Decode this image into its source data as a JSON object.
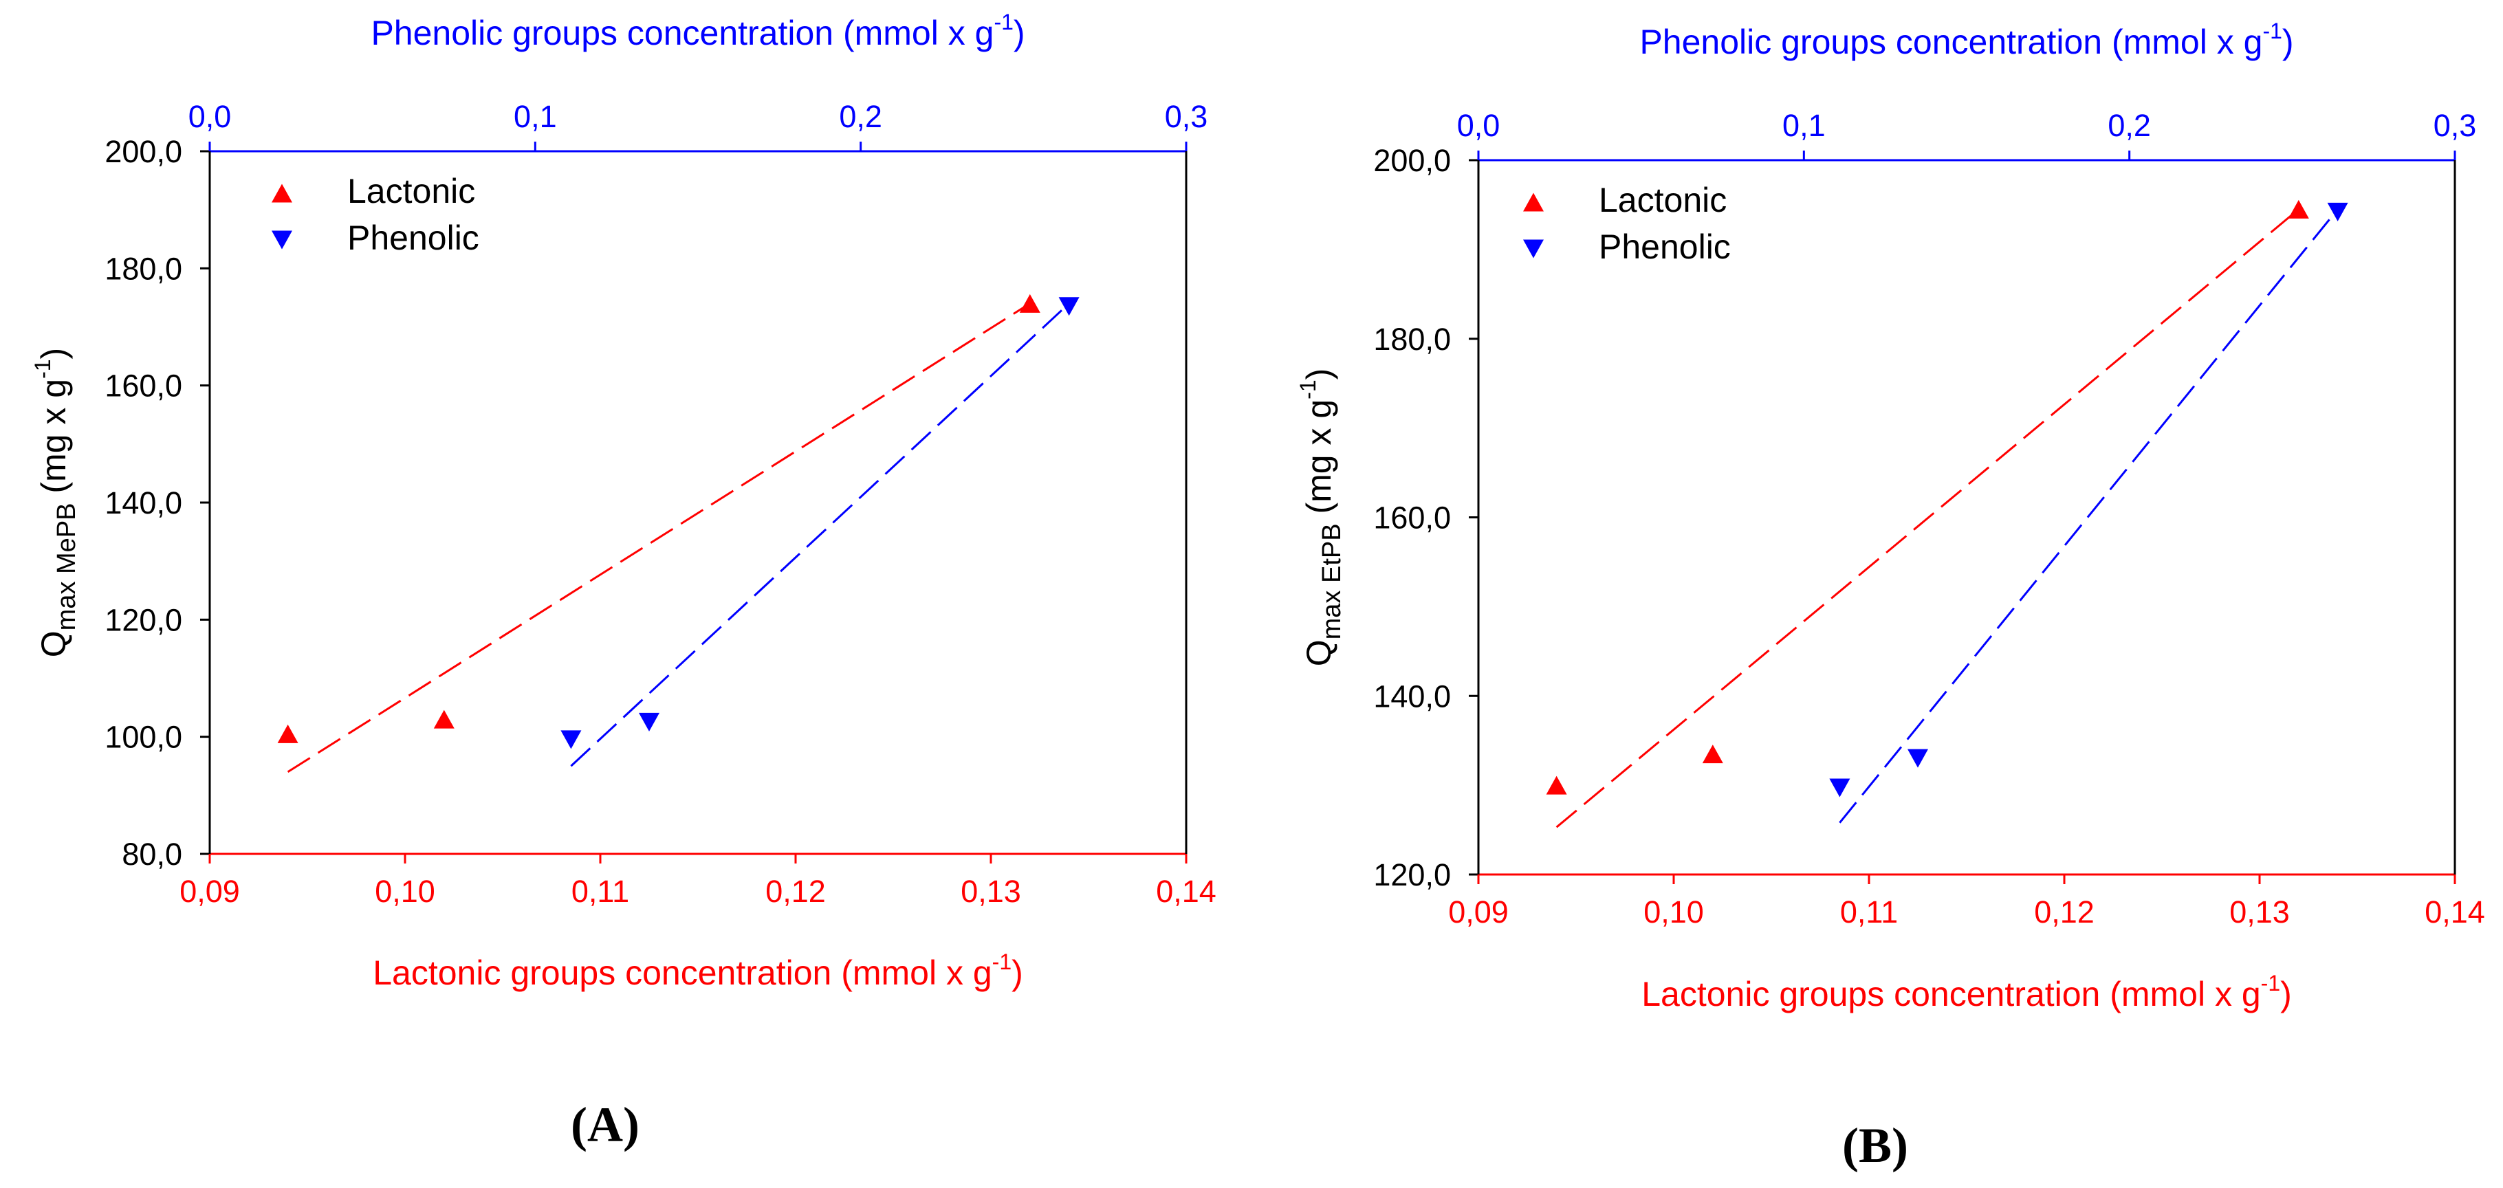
{
  "colors": {
    "lactonic": "#ff0000",
    "phenolic": "#0000ff",
    "axis": "#000000",
    "background": "#ffffff"
  },
  "chart_data": [
    {
      "type": "scatter",
      "panel_label": "A",
      "top_axis": {
        "label": "Phenolic groups concentration (mmol x g",
        "label_sup": "-1",
        "label_close": ")",
        "range": [
          0.0,
          0.3
        ],
        "ticks": [
          0.0,
          0.1,
          0.2,
          0.3
        ],
        "tick_labels": [
          "0,0",
          "0,1",
          "0,2",
          "0,3"
        ]
      },
      "bottom_axis": {
        "label": "Lactonic groups concentration (mmol x g",
        "label_sup": "-1",
        "label_close": ")",
        "range": [
          0.09,
          0.14
        ],
        "ticks": [
          0.09,
          0.1,
          0.11,
          0.12,
          0.13,
          0.14
        ],
        "tick_labels": [
          "0,09",
          "0,10",
          "0,11",
          "0,12",
          "0,13",
          "0,14"
        ]
      },
      "y_axis": {
        "label_main": "Q",
        "label_sub": "max  MePB",
        "label_rest": " (mg x g",
        "label_sup": "-1",
        "label_close": ")",
        "range": [
          80,
          200
        ],
        "ticks": [
          80,
          100,
          120,
          140,
          160,
          180,
          200
        ],
        "tick_labels": [
          "80,0",
          "100,0",
          "120,0",
          "140,0",
          "160,0",
          "180,0",
          "200,0"
        ]
      },
      "legend": {
        "position": "top-left",
        "entries": [
          "Lactonic",
          "Phenolic"
        ]
      },
      "series": [
        {
          "name": "Lactonic",
          "marker": "triangle-up",
          "axis": "bottom",
          "x": [
            0.094,
            0.102,
            0.132
          ],
          "y": [
            100.5,
            103.0,
            174.0
          ],
          "fit": {
            "x": [
              0.094,
              0.132
            ],
            "y": [
              94.0,
              174.0
            ]
          }
        },
        {
          "name": "Phenolic",
          "marker": "triangle-down",
          "axis": "top",
          "x": [
            0.111,
            0.135,
            0.264
          ],
          "y": [
            99.5,
            102.5,
            173.5
          ],
          "fit": {
            "x": [
              0.111,
              0.264
            ],
            "y": [
              95.0,
              174.0
            ]
          }
        }
      ]
    },
    {
      "type": "scatter",
      "panel_label": "B",
      "top_axis": {
        "label": "Phenolic groups concentration (mmol x g",
        "label_sup": "-1",
        "label_close": ")",
        "range": [
          0.0,
          0.3
        ],
        "ticks": [
          0.0,
          0.1,
          0.2,
          0.3
        ],
        "tick_labels": [
          "0,0",
          "0,1",
          "0,2",
          "0,3"
        ]
      },
      "bottom_axis": {
        "label": "Lactonic groups concentration (mmol x g",
        "label_sup": "-1",
        "label_close": ")",
        "range": [
          0.09,
          0.14
        ],
        "ticks": [
          0.09,
          0.1,
          0.11,
          0.12,
          0.13,
          0.14
        ],
        "tick_labels": [
          "0,09",
          "0,10",
          "0,11",
          "0,12",
          "0,13",
          "0,14"
        ]
      },
      "y_axis": {
        "label_main": "Q",
        "label_sub": "max  EtPB",
        "label_rest": " (mg x g",
        "label_sup": "-1",
        "label_close": ")",
        "range": [
          120,
          200
        ],
        "ticks": [
          120,
          140,
          160,
          180,
          200
        ],
        "tick_labels": [
          "120,0",
          "140,0",
          "160,0",
          "180,0",
          "200,0"
        ]
      },
      "legend": {
        "position": "top-left",
        "entries": [
          "Lactonic",
          "Phenolic"
        ]
      },
      "series": [
        {
          "name": "Lactonic",
          "marker": "triangle-up",
          "axis": "bottom",
          "x": [
            0.094,
            0.102,
            0.132
          ],
          "y": [
            130.0,
            133.5,
            194.5
          ],
          "fit": {
            "x": [
              0.094,
              0.132
            ],
            "y": [
              125.3,
              194.5
            ]
          }
        },
        {
          "name": "Phenolic",
          "marker": "triangle-down",
          "axis": "top",
          "x": [
            0.111,
            0.135,
            0.264
          ],
          "y": [
            129.7,
            133.0,
            194.2
          ],
          "fit": {
            "x": [
              0.111,
              0.264
            ],
            "y": [
              125.8,
              194.5
            ]
          }
        }
      ]
    }
  ]
}
